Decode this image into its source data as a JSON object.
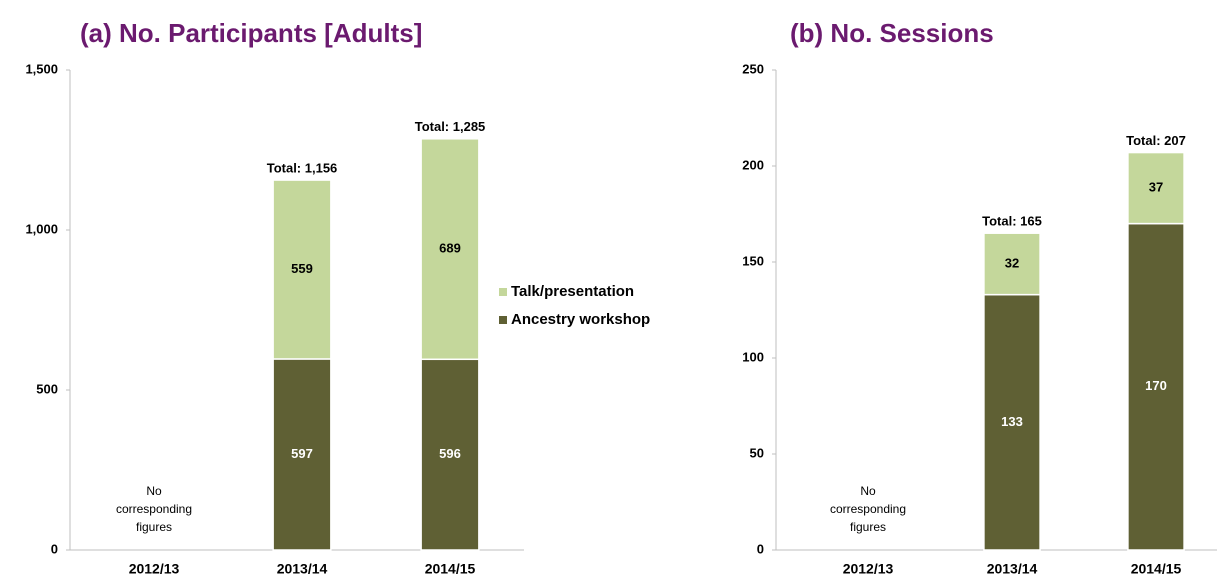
{
  "chart_data": [
    {
      "type": "stacked-bar",
      "title": "(a) No. Participants [Adults]",
      "categories": [
        "2012/13",
        "2013/14",
        "2014/15"
      ],
      "series": [
        {
          "name": "Ancestry workshop",
          "color": "#5f6034",
          "values": [
            null,
            597,
            596
          ]
        },
        {
          "name": "Talk/presentation",
          "color": "#c4d79b",
          "values": [
            null,
            559,
            689
          ]
        }
      ],
      "totals": [
        null,
        1156,
        1285
      ],
      "total_labels": [
        null,
        "Total: 1,156",
        "Total: 1,285"
      ],
      "annotation": [
        "No",
        "corresponding",
        "figures"
      ],
      "ylim": [
        0,
        1500
      ],
      "yticks": [
        0,
        500,
        {
          "value": 1000,
          "label": "1,000"
        },
        {
          "value": 1500,
          "label": "1,500"
        }
      ],
      "legend": "right"
    },
    {
      "type": "stacked-bar",
      "title": "(b) No. Sessions",
      "categories": [
        "2012/13",
        "2013/14",
        "2014/15"
      ],
      "series": [
        {
          "name": "Ancestry workshop",
          "color": "#5f6034",
          "values": [
            null,
            133,
            170
          ]
        },
        {
          "name": "Talk/presentation",
          "color": "#c4d79b",
          "values": [
            null,
            32,
            37
          ]
        }
      ],
      "totals": [
        null,
        165,
        207
      ],
      "total_labels": [
        null,
        "Total: 165",
        "Total: 207"
      ],
      "annotation": [
        "No",
        "corresponding",
        "figures"
      ],
      "ylim": [
        0,
        250
      ],
      "yticks": [
        0,
        50,
        100,
        150,
        200,
        250
      ]
    }
  ]
}
